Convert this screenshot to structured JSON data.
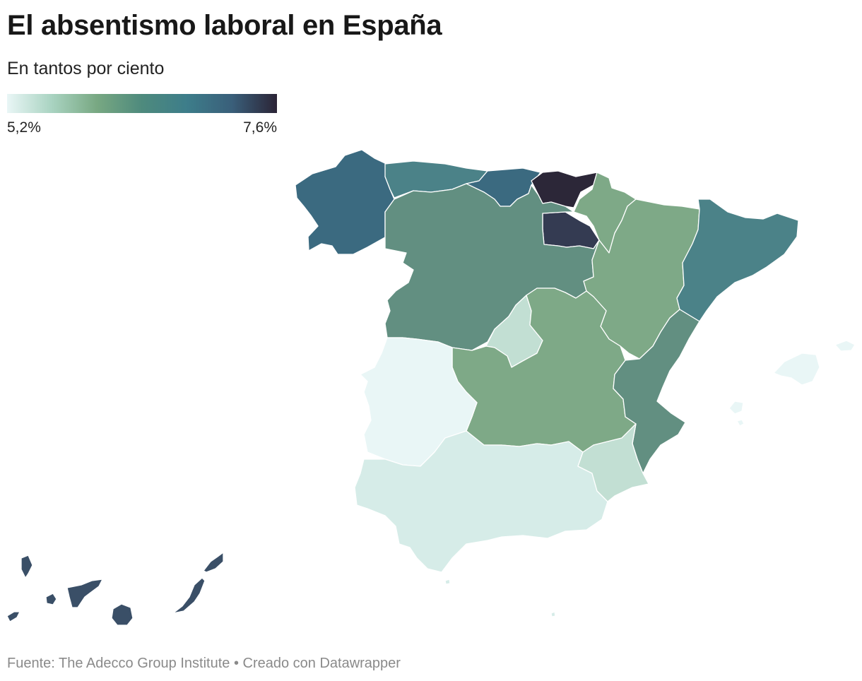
{
  "title": "El absentismo laboral en España",
  "subtitle": "En tantos por ciento",
  "legend": {
    "min_label": "5,2%",
    "max_label": "7,6%",
    "gradient_colors": [
      "#e9f6f6",
      "#a9d3c1",
      "#78a882",
      "#4e8a7d",
      "#3d7d8a",
      "#3a5f7a",
      "#2b2436"
    ]
  },
  "map_data": {
    "type": "choropleth",
    "value_range": [
      5.2,
      7.6
    ],
    "unit": "%",
    "regions": [
      {
        "name": "Galicia",
        "color": "#3b6a80"
      },
      {
        "name": "Asturias",
        "color": "#4b8288"
      },
      {
        "name": "Cantabria",
        "color": "#3b6a80"
      },
      {
        "name": "País Vasco",
        "color": "#2c2738"
      },
      {
        "name": "Navarra",
        "color": "#7ea987"
      },
      {
        "name": "La Rioja",
        "color": "#343b52"
      },
      {
        "name": "Castilla y León",
        "color": "#628f81"
      },
      {
        "name": "Aragón",
        "color": "#7ea987"
      },
      {
        "name": "Cataluña",
        "color": "#4b8288"
      },
      {
        "name": "Madrid",
        "color": "#c2dfd3"
      },
      {
        "name": "Castilla-La Mancha",
        "color": "#7ea987"
      },
      {
        "name": "Comunidad Valenciana",
        "color": "#628f81"
      },
      {
        "name": "Extremadura",
        "color": "#e9f6f6"
      },
      {
        "name": "Andalucía",
        "color": "#d6ece8"
      },
      {
        "name": "Murcia",
        "color": "#c2dfd3"
      },
      {
        "name": "Islas Baleares",
        "color": "#e9f6f6"
      },
      {
        "name": "Canarias",
        "color": "#3a4f67"
      },
      {
        "name": "Ceuta",
        "color": "#d6ece8"
      },
      {
        "name": "Melilla",
        "color": "#d6ece8"
      }
    ]
  },
  "footer": "Fuente: The Adecco Group Institute • Creado con Datawrapper"
}
